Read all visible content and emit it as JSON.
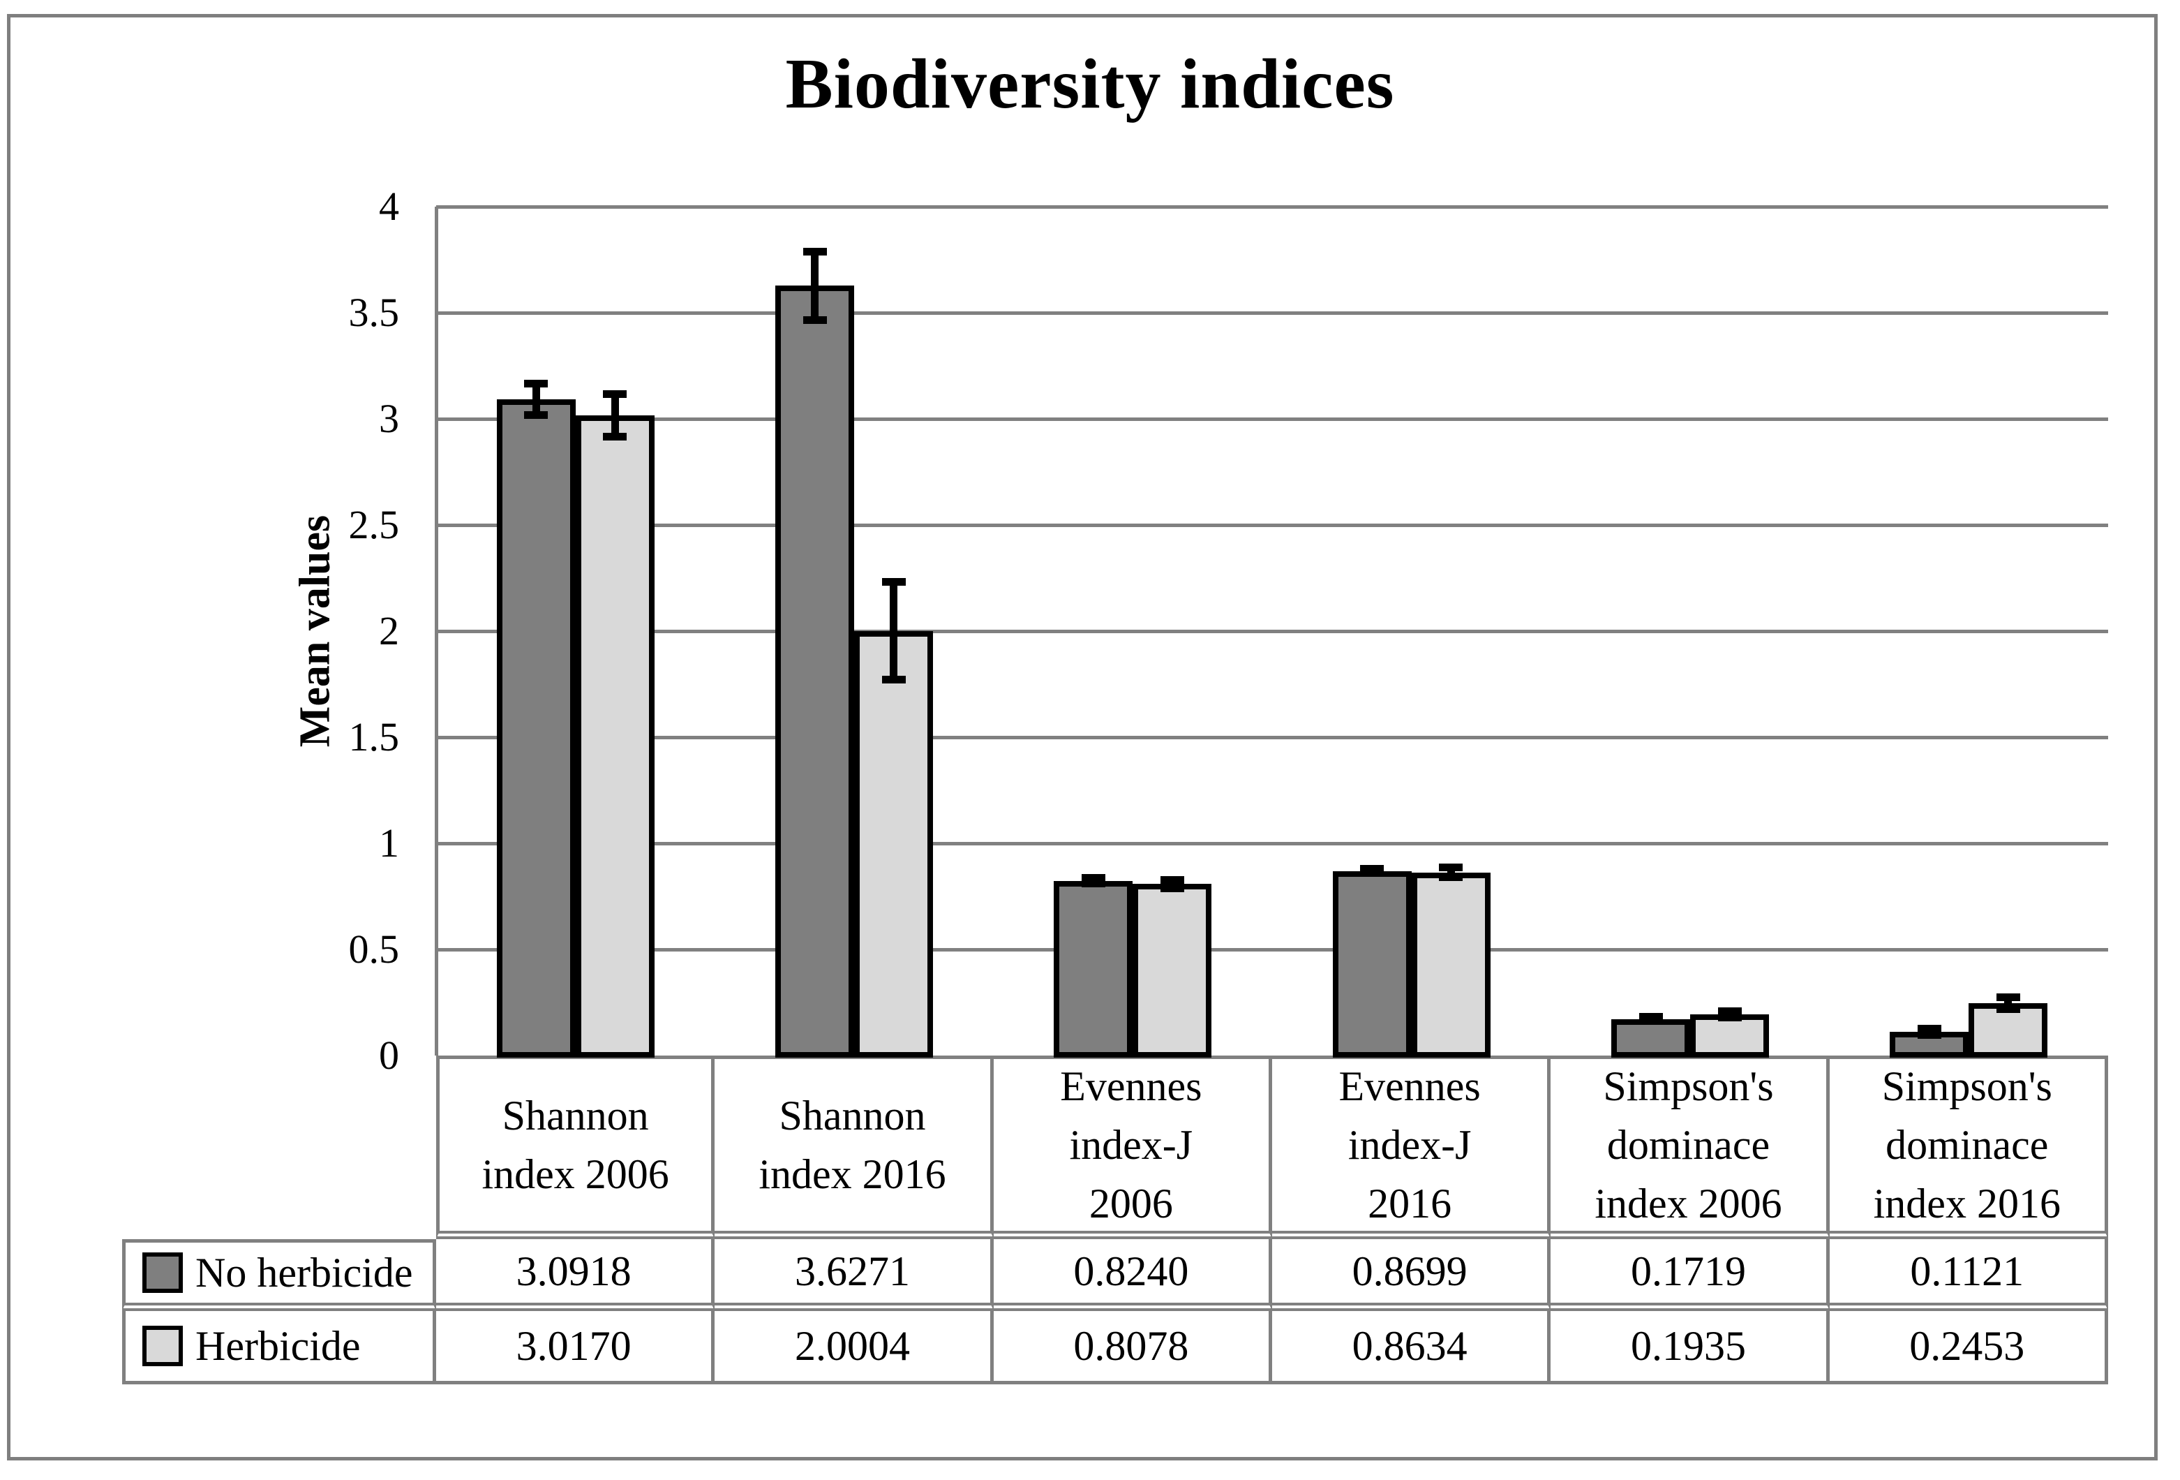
{
  "chart_data": {
    "type": "bar",
    "title": "Biodiversity indices",
    "xlabel": "",
    "ylabel": "Mean values",
    "ylim": [
      0,
      4
    ],
    "ytick_step": 0.5,
    "y_tick_labels": [
      "0",
      "0.5",
      "1",
      "1.5",
      "2",
      "2.5",
      "3",
      "3.5",
      "4"
    ],
    "grid": "horizontal gridlines at every 0.5",
    "legend_position": "left column of attached data table",
    "categories": [
      {
        "label": "Shannon index 2006",
        "lines": [
          "Shannon",
          "index 2006"
        ]
      },
      {
        "label": "Shannon index 2016",
        "lines": [
          "Shannon",
          "index 2016"
        ]
      },
      {
        "label": "Evennes index-J 2006",
        "lines": [
          "Evennes",
          "index-J",
          "2006"
        ]
      },
      {
        "label": "Evennes index-J 2016",
        "lines": [
          "Evennes",
          "index-J",
          "2016"
        ]
      },
      {
        "label": "Simpson's dominace index 2006",
        "lines": [
          "Simpson's",
          "dominace",
          "index 2006"
        ]
      },
      {
        "label": "Simpson's dominace index 2016",
        "lines": [
          "Simpson's",
          "dominace",
          "index 2016"
        ]
      }
    ],
    "series": [
      {
        "name": "No herbicide",
        "color": "#7f7f7f",
        "values": [
          3.0918,
          3.6271,
          0.824,
          0.8699,
          0.1719,
          0.1121
        ],
        "errors": [
          0.075,
          0.16,
          0.012,
          0.01,
          0.01,
          0.015
        ]
      },
      {
        "name": "Herbicide",
        "color": "#d9d9d9",
        "values": [
          3.017,
          2.0004,
          0.8078,
          0.8634,
          0.1935,
          0.2453
        ],
        "errors": [
          0.1,
          0.23,
          0.02,
          0.022,
          0.015,
          0.028
        ]
      }
    ],
    "value_display_decimals": 4,
    "error_bar_color": "#000000",
    "bar_outline_color": "#000000"
  },
  "colors": {
    "gridline": "#808080",
    "axis": "#808080",
    "table_border": "#808080",
    "figure_border": "#7f7f7f",
    "background": "#ffffff",
    "series_no_herbicide": "#7f7f7f",
    "series_herbicide": "#d9d9d9"
  }
}
